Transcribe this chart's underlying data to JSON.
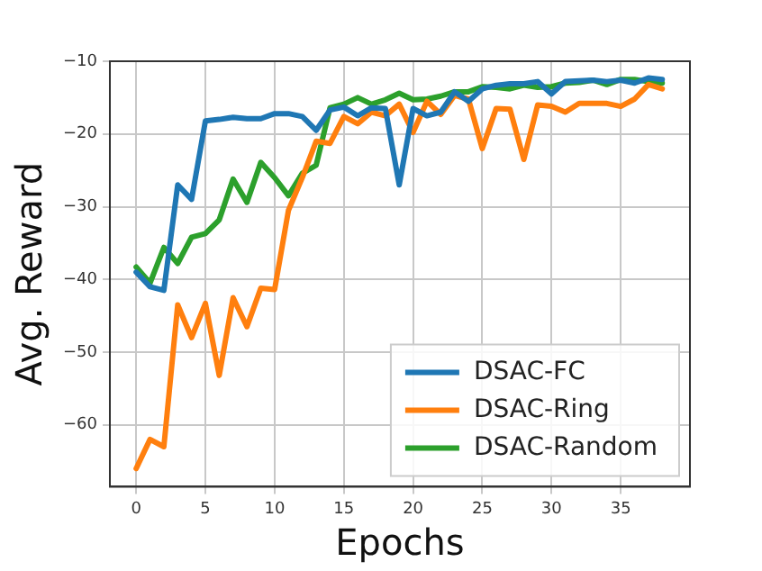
{
  "chart_data": {
    "type": "line",
    "xlabel": "Epochs",
    "ylabel": "Avg. Reward",
    "x": [
      0,
      1,
      2,
      3,
      4,
      5,
      6,
      7,
      8,
      9,
      10,
      11,
      12,
      13,
      14,
      15,
      16,
      17,
      18,
      19,
      20,
      21,
      22,
      23,
      24,
      25,
      26,
      27,
      28,
      29,
      30,
      31,
      32,
      33,
      34,
      35,
      36,
      37,
      38
    ],
    "series": [
      {
        "name": "DSAC-FC",
        "color": "#1f77b4",
        "values": [
          -39,
          -41,
          -41.5,
          -27,
          -29,
          -18.2,
          -18,
          -17.7,
          -17.9,
          -17.9,
          -17.2,
          -17.2,
          -17.6,
          -19.5,
          -16.7,
          -16.3,
          -17.5,
          -16.4,
          -16.5,
          -27,
          -16.5,
          -17.5,
          -17,
          -14.2,
          -15.5,
          -13.8,
          -13.3,
          -13.1,
          -13.1,
          -12.8,
          -14.5,
          -12.8,
          -12.7,
          -12.6,
          -12.8,
          -12.6,
          -13,
          -12.3,
          -12.5
        ]
      },
      {
        "name": "DSAC-Ring",
        "color": "#ff7f0e",
        "values": [
          -66,
          -62,
          -63,
          -43.5,
          -48,
          -43.3,
          -53.2,
          -42.5,
          -46.5,
          -41.2,
          -41.4,
          -30.5,
          -26,
          -21,
          -21.3,
          -17.6,
          -18.6,
          -17,
          -17.5,
          -15.9,
          -19.8,
          -15.5,
          -17.3,
          -14.7,
          -15.2,
          -22,
          -16.5,
          -16.6,
          -23.5,
          -16,
          -16.2,
          -17,
          -15.8,
          -15.8,
          -15.8,
          -16.2,
          -15.2,
          -13.2,
          -13.8
        ]
      },
      {
        "name": "DSAC-Random",
        "color": "#2ca02c",
        "values": [
          -38.3,
          -40.5,
          -35.6,
          -37.8,
          -34.2,
          -33.7,
          -31.8,
          -26.2,
          -29.4,
          -23.9,
          -26,
          -28.5,
          -25.4,
          -24.3,
          -16.4,
          -15.9,
          -15,
          -15.9,
          -15.3,
          -14.4,
          -15.3,
          -15.2,
          -14.8,
          -14.2,
          -14.2,
          -13.5,
          -13.6,
          -13.8,
          -13.3,
          -13.6,
          -13.5,
          -13,
          -12.9,
          -12.6,
          -13.2,
          -12.5,
          -12.5,
          -12.8,
          -13
        ]
      }
    ],
    "xlim": [
      -1.9,
      40
    ],
    "ylim": [
      -68.5,
      -10
    ],
    "xticks": [
      0,
      5,
      10,
      15,
      20,
      25,
      30,
      35
    ],
    "yticks": [
      -60,
      -50,
      -40,
      -30,
      -20,
      -10
    ],
    "grid": true,
    "legend": "bottom right",
    "marker": "none",
    "line_style": "solid"
  }
}
